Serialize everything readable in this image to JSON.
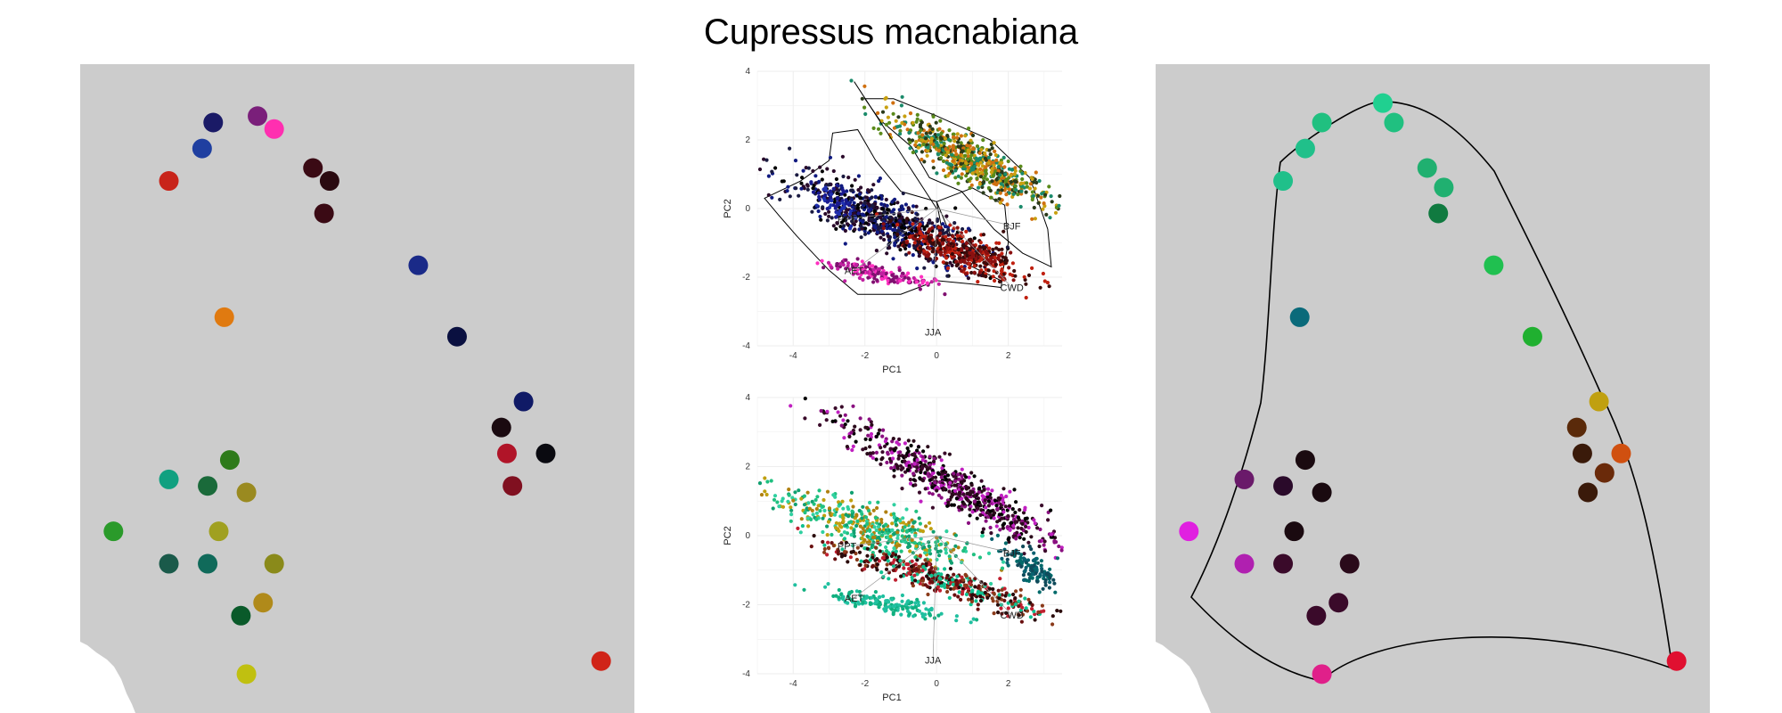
{
  "title": "Cupressus macnabiana",
  "chart_data": [
    {
      "type": "map",
      "panel": "left map",
      "background": "#cccccc",
      "patches": [
        {
          "lon": 0.32,
          "lat": 0.08,
          "color": "#7a1f7a"
        },
        {
          "lon": 0.35,
          "lat": 0.1,
          "color": "#ff2fb0"
        },
        {
          "lon": 0.24,
          "lat": 0.09,
          "color": "#1a1a66"
        },
        {
          "lon": 0.22,
          "lat": 0.13,
          "color": "#1f3fa0"
        },
        {
          "lon": 0.16,
          "lat": 0.18,
          "color": "#c8241a"
        },
        {
          "lon": 0.42,
          "lat": 0.16,
          "color": "#3a0a14"
        },
        {
          "lon": 0.45,
          "lat": 0.18,
          "color": "#2a0a10"
        },
        {
          "lon": 0.44,
          "lat": 0.23,
          "color": "#3a0a14"
        },
        {
          "lon": 0.61,
          "lat": 0.31,
          "color": "#1a2a88"
        },
        {
          "lon": 0.26,
          "lat": 0.39,
          "color": "#e07a10"
        },
        {
          "lon": 0.68,
          "lat": 0.42,
          "color": "#0a1040"
        },
        {
          "lon": 0.8,
          "lat": 0.52,
          "color": "#101a66"
        },
        {
          "lon": 0.76,
          "lat": 0.56,
          "color": "#1a0a10"
        },
        {
          "lon": 0.77,
          "lat": 0.6,
          "color": "#b01428"
        },
        {
          "lon": 0.84,
          "lat": 0.6,
          "color": "#0a0a10"
        },
        {
          "lon": 0.78,
          "lat": 0.65,
          "color": "#801020"
        },
        {
          "lon": 0.27,
          "lat": 0.61,
          "color": "#2e7a1a"
        },
        {
          "lon": 0.16,
          "lat": 0.64,
          "color": "#10a080"
        },
        {
          "lon": 0.23,
          "lat": 0.65,
          "color": "#1a6a3a"
        },
        {
          "lon": 0.3,
          "lat": 0.66,
          "color": "#9a8a20"
        },
        {
          "lon": 0.25,
          "lat": 0.72,
          "color": "#a0a020"
        },
        {
          "lon": 0.06,
          "lat": 0.72,
          "color": "#2a9a2a"
        },
        {
          "lon": 0.16,
          "lat": 0.77,
          "color": "#1a5a4a"
        },
        {
          "lon": 0.23,
          "lat": 0.77,
          "color": "#106a5a"
        },
        {
          "lon": 0.35,
          "lat": 0.77,
          "color": "#8a8a1a"
        },
        {
          "lon": 0.33,
          "lat": 0.83,
          "color": "#b08a1a"
        },
        {
          "lon": 0.29,
          "lat": 0.85,
          "color": "#0a5a2a"
        },
        {
          "lon": 0.3,
          "lat": 0.94,
          "color": "#c0c010"
        },
        {
          "lon": 0.94,
          "lat": 0.92,
          "color": "#d02418"
        }
      ]
    },
    {
      "type": "scatter",
      "panel": "top PCA biplot",
      "xlabel": "PC1",
      "ylabel": "PC2",
      "xlim": [
        -5,
        3.5
      ],
      "ylim": [
        -4,
        4
      ],
      "xticks": [
        -4,
        -2,
        0,
        2
      ],
      "yticks": [
        -4,
        -2,
        0,
        2,
        4
      ],
      "hull": true,
      "clusters": [
        {
          "cx": 0.9,
          "cy": 1.4,
          "spread": [
            1.2,
            0.3
          ],
          "angle": -30,
          "n": 700,
          "colors": [
            "#1a8a6a",
            "#5a8a1a",
            "#2a3a1a",
            "#c8a010",
            "#d07010"
          ]
        },
        {
          "cx": -1.5,
          "cy": -0.3,
          "spread": [
            1.4,
            0.35
          ],
          "angle": -25,
          "n": 700,
          "colors": [
            "#101a80",
            "#1a1a40",
            "#000000",
            "#2a0a2a"
          ]
        },
        {
          "cx": 0.8,
          "cy": -1.3,
          "spread": [
            0.9,
            0.25
          ],
          "angle": -20,
          "n": 400,
          "colors": [
            "#8a1010",
            "#c02010",
            "#3a0a0a"
          ]
        },
        {
          "cx": -1.6,
          "cy": -1.9,
          "spread": [
            0.8,
            0.12
          ],
          "angle": -12,
          "n": 160,
          "colors": [
            "#c020a0",
            "#ff30c0",
            "#801070"
          ]
        },
        {
          "cx": -2.8,
          "cy": 0.2,
          "spread": [
            0.4,
            0.2
          ],
          "angle": -30,
          "n": 60,
          "colors": [
            "#1a1a90",
            "#2030b0"
          ]
        }
      ],
      "vectors": [
        {
          "label": "PPT",
          "x": -2.5,
          "y": -0.3
        },
        {
          "label": "BJF",
          "x": 2.1,
          "y": -0.5
        },
        {
          "label": "CWD",
          "x": 2.1,
          "y": -2.3
        },
        {
          "label": "AET",
          "x": -2.3,
          "y": -1.8
        },
        {
          "label": "JJA",
          "x": -0.1,
          "y": -3.6
        },
        {
          "label": "",
          "x": -2.3,
          "y": 3.7
        }
      ]
    },
    {
      "type": "scatter",
      "panel": "bottom PCA biplot",
      "xlabel": "PC1",
      "ylabel": "PC2",
      "xlim": [
        -5,
        3.5
      ],
      "ylim": [
        -4,
        4
      ],
      "xticks": [
        -4,
        -2,
        0,
        2
      ],
      "yticks": [
        -4,
        -2,
        0,
        2,
        4
      ],
      "hull": false,
      "clusters": [
        {
          "cx": 0.5,
          "cy": 1.4,
          "spread": [
            1.8,
            0.28
          ],
          "angle": -30,
          "n": 650,
          "colors": [
            "#3a0a2a",
            "#c020c0",
            "#8a1080",
            "#000000",
            "#2a0a1a"
          ]
        },
        {
          "cx": -1.7,
          "cy": 0.2,
          "spread": [
            1.5,
            0.3
          ],
          "angle": -18,
          "n": 450,
          "colors": [
            "#20c080",
            "#10a070",
            "#30d0a0",
            "#c0a010",
            "#b08010"
          ]
        },
        {
          "cx": 0.1,
          "cy": -1.3,
          "spread": [
            1.6,
            0.2
          ],
          "angle": -18,
          "n": 450,
          "colors": [
            "#8a3a1a",
            "#10c090",
            "#2a0a0a",
            "#c02030",
            "#6a1010"
          ]
        },
        {
          "cx": -1.3,
          "cy": -2.0,
          "spread": [
            0.9,
            0.12
          ],
          "angle": -10,
          "n": 160,
          "colors": [
            "#10b080",
            "#20c0a0"
          ]
        },
        {
          "cx": 2.6,
          "cy": -0.9,
          "spread": [
            0.5,
            0.18
          ],
          "angle": -40,
          "n": 120,
          "colors": [
            "#0a6070",
            "#104a5a",
            "#006a6a"
          ]
        }
      ],
      "vectors": [
        {
          "label": "PPT",
          "x": -2.5,
          "y": -0.3
        },
        {
          "label": "BJF",
          "x": 2.1,
          "y": -0.5
        },
        {
          "label": "CWD",
          "x": 2.1,
          "y": -2.3
        },
        {
          "label": "AET",
          "x": -2.3,
          "y": -1.8
        },
        {
          "label": "JJA",
          "x": -0.1,
          "y": -3.6
        }
      ]
    },
    {
      "type": "map",
      "panel": "right map",
      "background": "#cccccc",
      "outline": true,
      "patches": [
        {
          "lon": 0.41,
          "lat": 0.06,
          "color": "#20d090"
        },
        {
          "lon": 0.43,
          "lat": 0.09,
          "color": "#20c080"
        },
        {
          "lon": 0.3,
          "lat": 0.09,
          "color": "#20c080"
        },
        {
          "lon": 0.27,
          "lat": 0.13,
          "color": "#20c08a"
        },
        {
          "lon": 0.23,
          "lat": 0.18,
          "color": "#20c08a"
        },
        {
          "lon": 0.49,
          "lat": 0.16,
          "color": "#20b070"
        },
        {
          "lon": 0.52,
          "lat": 0.19,
          "color": "#20b070"
        },
        {
          "lon": 0.51,
          "lat": 0.23,
          "color": "#107a40"
        },
        {
          "lon": 0.61,
          "lat": 0.31,
          "color": "#20c050"
        },
        {
          "lon": 0.26,
          "lat": 0.39,
          "color": "#0a6a7a"
        },
        {
          "lon": 0.68,
          "lat": 0.42,
          "color": "#20b030"
        },
        {
          "lon": 0.8,
          "lat": 0.52,
          "color": "#c0a010"
        },
        {
          "lon": 0.76,
          "lat": 0.56,
          "color": "#5a2a0a"
        },
        {
          "lon": 0.77,
          "lat": 0.6,
          "color": "#3a1a0a"
        },
        {
          "lon": 0.84,
          "lat": 0.6,
          "color": "#d05010"
        },
        {
          "lon": 0.81,
          "lat": 0.63,
          "color": "#6a2a0a"
        },
        {
          "lon": 0.78,
          "lat": 0.66,
          "color": "#3a1a0a"
        },
        {
          "lon": 0.27,
          "lat": 0.61,
          "color": "#1a0a10"
        },
        {
          "lon": 0.16,
          "lat": 0.64,
          "color": "#6a1a6a"
        },
        {
          "lon": 0.23,
          "lat": 0.65,
          "color": "#2a0a2a"
        },
        {
          "lon": 0.3,
          "lat": 0.66,
          "color": "#1a0a10"
        },
        {
          "lon": 0.25,
          "lat": 0.72,
          "color": "#1a0a10"
        },
        {
          "lon": 0.06,
          "lat": 0.72,
          "color": "#e020e0"
        },
        {
          "lon": 0.16,
          "lat": 0.77,
          "color": "#b020b0"
        },
        {
          "lon": 0.23,
          "lat": 0.77,
          "color": "#3a0a2a"
        },
        {
          "lon": 0.35,
          "lat": 0.77,
          "color": "#2a0a1a"
        },
        {
          "lon": 0.33,
          "lat": 0.83,
          "color": "#3a0a2a"
        },
        {
          "lon": 0.29,
          "lat": 0.85,
          "color": "#3a0a2a"
        },
        {
          "lon": 0.3,
          "lat": 0.94,
          "color": "#e0208a"
        },
        {
          "lon": 0.94,
          "lat": 0.92,
          "color": "#e01030"
        }
      ]
    }
  ]
}
